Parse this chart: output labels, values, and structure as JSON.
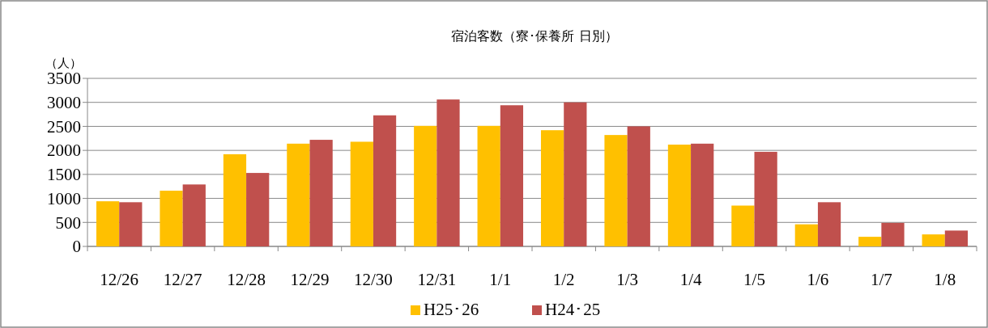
{
  "chart_data": {
    "type": "bar",
    "title": "宿泊客数（寮･保養所 日別）",
    "ylabel": "（人）",
    "categories": [
      "12/26",
      "12/27",
      "12/28",
      "12/29",
      "12/30",
      "12/31",
      "1/1",
      "1/2",
      "1/3",
      "1/4",
      "1/5",
      "1/6",
      "1/7",
      "1/8"
    ],
    "series": [
      {
        "name": "H25･26",
        "color": "#ffc000",
        "values": [
          940,
          1160,
          1920,
          2140,
          2180,
          2510,
          2510,
          2420,
          2320,
          2120,
          850,
          460,
          200,
          250
        ]
      },
      {
        "name": "H24･25",
        "color": "#c0504d",
        "values": [
          920,
          1290,
          1530,
          2220,
          2730,
          3060,
          2940,
          3000,
          2500,
          2140,
          1970,
          920,
          490,
          330
        ]
      }
    ],
    "ylim": [
      0,
      3500
    ],
    "yticks": [
      0,
      500,
      1000,
      1500,
      2000,
      2500,
      3000,
      3500
    ],
    "grid": "y",
    "legend": "bottom"
  }
}
